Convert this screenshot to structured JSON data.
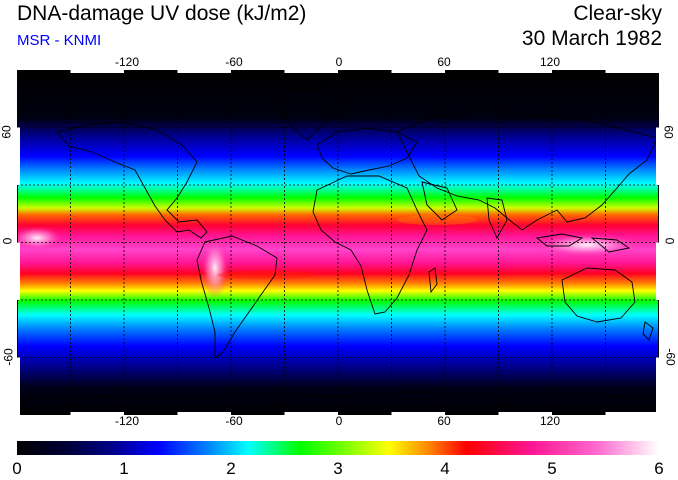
{
  "header": {
    "title": "DNA-damage UV dose (kJ/m2)",
    "subtitle": "MSR - KNMI",
    "sky_condition": "Clear-sky",
    "date": "30 March 1982"
  },
  "map": {
    "lon_ticks_top": [
      "-120",
      "-60",
      "0",
      "60",
      "120"
    ],
    "lon_ticks_bottom": [
      "-120",
      "-60",
      "0",
      "60",
      "120"
    ],
    "lat_ticks_left": [
      "60",
      "0",
      "-60"
    ],
    "lat_ticks_right": [
      "60",
      "0",
      "-60"
    ],
    "gridline_longitudes": [
      -150,
      -120,
      -90,
      -60,
      -30,
      0,
      30,
      60,
      90,
      120,
      150
    ],
    "gridline_latitudes": [
      60,
      30,
      0,
      -30,
      -60
    ],
    "lon_range": [
      -180,
      180
    ],
    "lat_range": [
      -90,
      90
    ]
  },
  "colorbar": {
    "labels": [
      "0",
      "1",
      "2",
      "3",
      "4",
      "5",
      "6"
    ],
    "range": [
      0,
      6
    ],
    "colors": [
      "#000000",
      "#00008b",
      "#0000ff",
      "#00ffff",
      "#00ff00",
      "#ffff00",
      "#ff0000",
      "#ff1493",
      "#ff66cc",
      "#ffffff"
    ]
  }
}
